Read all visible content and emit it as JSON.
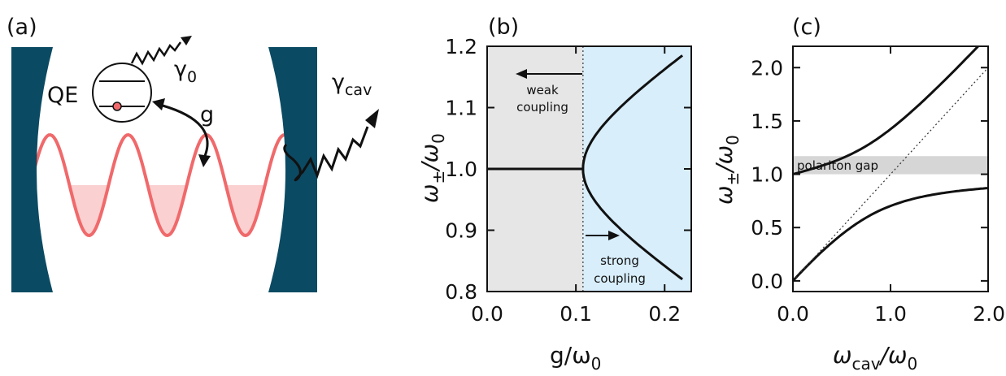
{
  "panels": {
    "a": {
      "label": "(a)",
      "qe": "QE",
      "gamma0_sym": "γ",
      "gamma0_sub": "0",
      "gammacav_sym": "γ",
      "gammacav_sub": "cav",
      "g": "g",
      "colors": {
        "mirror": "#0b4a63",
        "wave": "#f0696b",
        "wave_fill": "#fbd0d0"
      }
    },
    "b": {
      "label": "(b)",
      "weak1": "weak",
      "weak2": "coupling",
      "strong1": "strong",
      "strong2": "coupling",
      "ylabel_sym": "ω",
      "ylabel_sub": "±",
      "ylabel_tail": "/ω",
      "ylabel_sub2": "0",
      "xlabel_main": "g/ω",
      "xlabel_sub": "0",
      "colors": {
        "weak_bg": "#e6e6e6",
        "strong_bg": "#d8eefb"
      }
    },
    "c": {
      "label": "(c)",
      "gap": "polariton gap",
      "ylabel_sym": "ω",
      "ylabel_sub": "±",
      "ylabel_tail": "/ω",
      "ylabel_sub2": "0",
      "xlabel_sym": "ω",
      "xlabel_sub": "cav",
      "xlabel_tail": "/ω",
      "xlabel_sub2": "0",
      "colors": {
        "gap_band": "#d6d6d6"
      }
    }
  },
  "chart_data": [
    {
      "type": "line",
      "panel": "b",
      "xlim": [
        0,
        0.23
      ],
      "ylim": [
        0.8,
        1.2
      ],
      "xticks": [
        "0.0",
        "0.1",
        "0.2"
      ],
      "yticks": [
        "0.8",
        "0.9",
        "1.0",
        "1.1",
        "1.2"
      ],
      "threshold_g": 0.108,
      "series": [
        {
          "values": [
            [
              0,
              1.0
            ],
            [
              0.108,
              1.0
            ]
          ]
        },
        {
          "values": [
            [
              0.108,
              1.0
            ],
            [
              0.12,
              1.05
            ],
            [
              0.15,
              1.1
            ],
            [
              0.19,
              1.155
            ],
            [
              0.22,
              1.185
            ]
          ]
        },
        {
          "values": [
            [
              0.108,
              1.0
            ],
            [
              0.12,
              0.95
            ],
            [
              0.15,
              0.9
            ],
            [
              0.19,
              0.85
            ],
            [
              0.22,
              0.82
            ]
          ]
        }
      ]
    },
    {
      "type": "line",
      "panel": "c",
      "xlim": [
        0,
        2.0
      ],
      "ylim": [
        -0.1,
        2.2
      ],
      "xticks": [
        "0.0",
        "1.0",
        "2.0"
      ],
      "yticks": [
        "0.0",
        "0.5",
        "1.0",
        "1.5",
        "2.0"
      ],
      "gap_range": [
        1.0,
        1.17
      ],
      "coupling": 0.36,
      "series": [
        {
          "values": [
            [
              0,
              1.17
            ],
            [
              0.5,
              1.2
            ],
            [
              1.0,
              1.38
            ],
            [
              1.5,
              1.7
            ],
            [
              2.0,
              2.1
            ]
          ]
        },
        {
          "values": [
            [
              0,
              0.0
            ],
            [
              0.5,
              0.42
            ],
            [
              1.0,
              0.72
            ],
            [
              1.5,
              0.88
            ],
            [
              2.0,
              0.95
            ]
          ]
        },
        {
          "values": [
            [
              0,
              0
            ],
            [
              2.0,
              2.0
            ]
          ]
        }
      ]
    }
  ]
}
